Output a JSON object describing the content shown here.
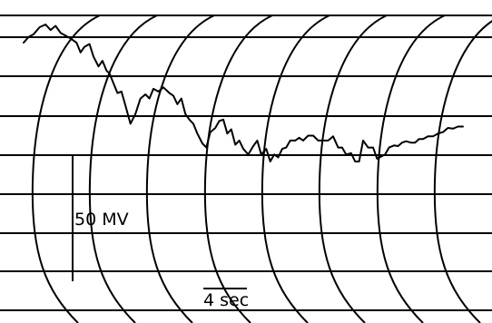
{
  "chart_data": {
    "type": "line",
    "title": "",
    "xlabel": "",
    "ylabel": "",
    "grid": true,
    "curved_time_grid": true,
    "xlim": [
      0,
      44
    ],
    "ylim": [
      -175,
      55
    ],
    "series": [
      {
        "color": "#000000",
        "x": [
          0.0,
          0.5,
          1.0,
          1.6,
          2.2,
          2.7,
          3.2,
          3.7,
          4.2,
          4.7,
          5.3,
          5.7,
          6.1,
          6.6,
          7.0,
          7.5,
          7.9,
          8.3,
          8.6,
          9.0,
          9.4,
          9.8,
          10.2,
          10.7,
          11.2,
          11.7,
          12.2,
          12.6,
          13.0,
          13.5,
          14.0,
          14.6,
          15.0,
          15.4,
          15.8,
          16.2,
          16.6,
          17.0,
          17.4,
          17.9,
          18.3,
          18.7,
          19.2,
          19.6,
          20.0,
          20.4,
          20.8,
          21.2,
          21.6,
          22.0,
          22.5,
          23.0,
          23.4,
          23.8,
          24.3,
          24.7,
          25.1,
          25.5,
          25.9,
          26.3,
          26.7,
          27.2,
          27.6,
          28.0,
          28.5,
          29.0,
          29.5,
          30.0,
          30.5,
          31.0,
          31.5,
          31.9,
          32.3,
          32.8,
          33.2,
          33.6,
          34.0,
          34.5,
          35.0,
          35.4,
          35.8,
          36.2,
          36.6,
          37.1,
          37.5,
          37.9,
          38.3,
          38.8,
          39.2,
          39.6,
          40.0,
          40.5,
          41.0,
          41.5,
          42.0,
          42.5,
          43.0,
          43.5,
          44.0
        ],
        "values": [
          0,
          8,
          12,
          22,
          26,
          18,
          24,
          14,
          10,
          6,
          0,
          -14,
          -6,
          -2,
          -20,
          -34,
          -26,
          -40,
          -44,
          -58,
          -72,
          -70,
          -90,
          -116,
          -102,
          -80,
          -74,
          -80,
          -66,
          -70,
          -64,
          -72,
          -76,
          -88,
          -80,
          -102,
          -110,
          -116,
          -130,
          -144,
          -150,
          -128,
          -122,
          -112,
          -110,
          -130,
          -124,
          -146,
          -140,
          -152,
          -160,
          -148,
          -140,
          -160,
          -152,
          -170,
          -160,
          -164,
          -152,
          -150,
          -140,
          -140,
          -136,
          -140,
          -133,
          -133,
          -140,
          -140,
          -140,
          -134,
          -150,
          -150,
          -160,
          -158,
          -170,
          -170,
          -140,
          -150,
          -150,
          -166,
          -163,
          -160,
          -150,
          -147,
          -148,
          -143,
          -141,
          -143,
          -143,
          -138,
          -138,
          -134,
          -134,
          -130,
          -128,
          -122,
          -123,
          -120,
          -120
        ]
      }
    ],
    "scale_bars": {
      "amplitude": {
        "label": "50 MV",
        "value": 50
      },
      "time": {
        "label": "4 sec",
        "value": 4
      }
    }
  }
}
